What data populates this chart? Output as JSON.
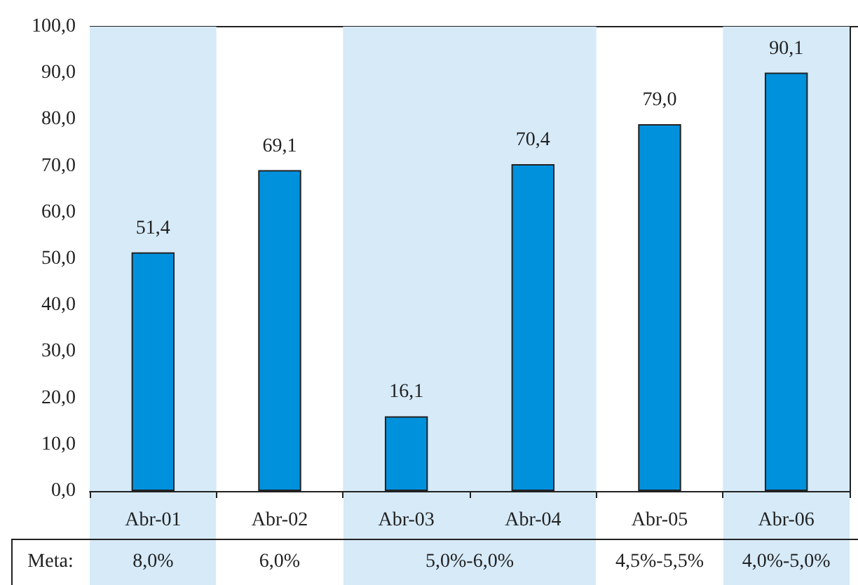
{
  "chart_data": {
    "type": "bar",
    "categories": [
      "Abr-01",
      "Abr-02",
      "Abr-03",
      "Abr-04",
      "Abr-05",
      "Abr-06"
    ],
    "values": [
      51.4,
      69.1,
      16.1,
      70.4,
      79.0,
      90.1
    ],
    "value_labels": [
      "51,4",
      "69,1",
      "16,1",
      "70,4",
      "79,0",
      "90,1"
    ],
    "color": "#0091dc",
    "ylim": [
      0,
      100
    ],
    "yticks": [
      {
        "value": 0,
        "label": "0,0"
      },
      {
        "value": 10,
        "label": "10,0"
      },
      {
        "value": 20,
        "label": "20,0"
      },
      {
        "value": 30,
        "label": "30,0"
      },
      {
        "value": 40,
        "label": "40,0"
      },
      {
        "value": 50,
        "label": "50,0"
      },
      {
        "value": 60,
        "label": "60,0"
      },
      {
        "value": 70,
        "label": "70,0"
      },
      {
        "value": 80,
        "label": "80,0"
      },
      {
        "value": 90,
        "label": "90,0"
      },
      {
        "value": 100,
        "label": "100,0"
      }
    ],
    "grid": false,
    "bands": [
      {
        "axis": "x",
        "from": "Abr-01",
        "to": "Abr-01",
        "color": "#d6eaf8"
      },
      {
        "axis": "x",
        "from": "Abr-03",
        "to": "Abr-04",
        "color": "#d6eaf8"
      },
      {
        "axis": "x",
        "from": "Abr-06",
        "to": "Abr-06",
        "color": "#d6eaf8"
      }
    ],
    "annotations": [
      "Meta:",
      "8,0%",
      "6,0%",
      "5,0%-6,0%",
      "4,5%-5,5%",
      "4,0%-5,0%"
    ]
  }
}
